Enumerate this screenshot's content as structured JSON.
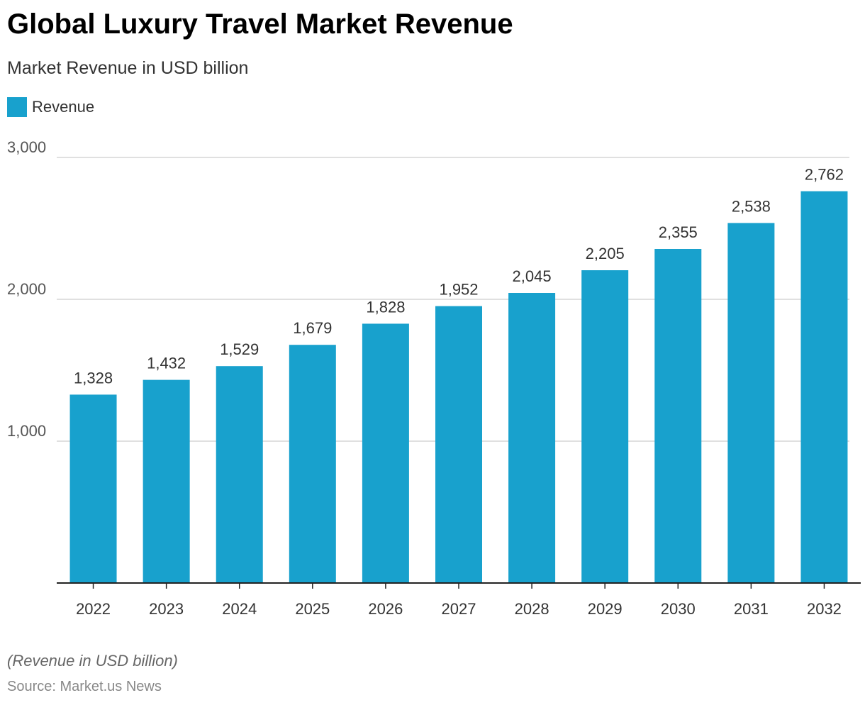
{
  "title": "Global Luxury Travel Market Revenue",
  "subtitle": "Market Revenue in USD billion",
  "note": "(Revenue in USD billion)",
  "source": "Source: Market.us News",
  "colors": {
    "bar": "#18A1CD",
    "grid": "#d6d6d6",
    "axis": "#222222"
  },
  "chart_data": {
    "type": "bar",
    "title": "Global Luxury Travel Market Revenue",
    "xlabel": "",
    "ylabel": "Market Revenue in USD billion",
    "categories": [
      "2022",
      "2023",
      "2024",
      "2025",
      "2026",
      "2027",
      "2028",
      "2029",
      "2030",
      "2031",
      "2032"
    ],
    "series": [
      {
        "name": "Revenue",
        "values": [
          1328,
          1432,
          1529,
          1679,
          1828,
          1952,
          2045,
          2205,
          2355,
          2538,
          2762
        ]
      }
    ],
    "data_labels": [
      "1,328",
      "1,432",
      "1,529",
      "1,679",
      "1,828",
      "1,952",
      "2,045",
      "2,205",
      "2,355",
      "2,538",
      "2,762"
    ],
    "ylim": [
      0,
      3000
    ],
    "yticks": [
      1000,
      2000,
      3000
    ],
    "ytick_labels": [
      "1,000",
      "2,000",
      "3,000"
    ],
    "grid": true,
    "legend": "top-left"
  }
}
